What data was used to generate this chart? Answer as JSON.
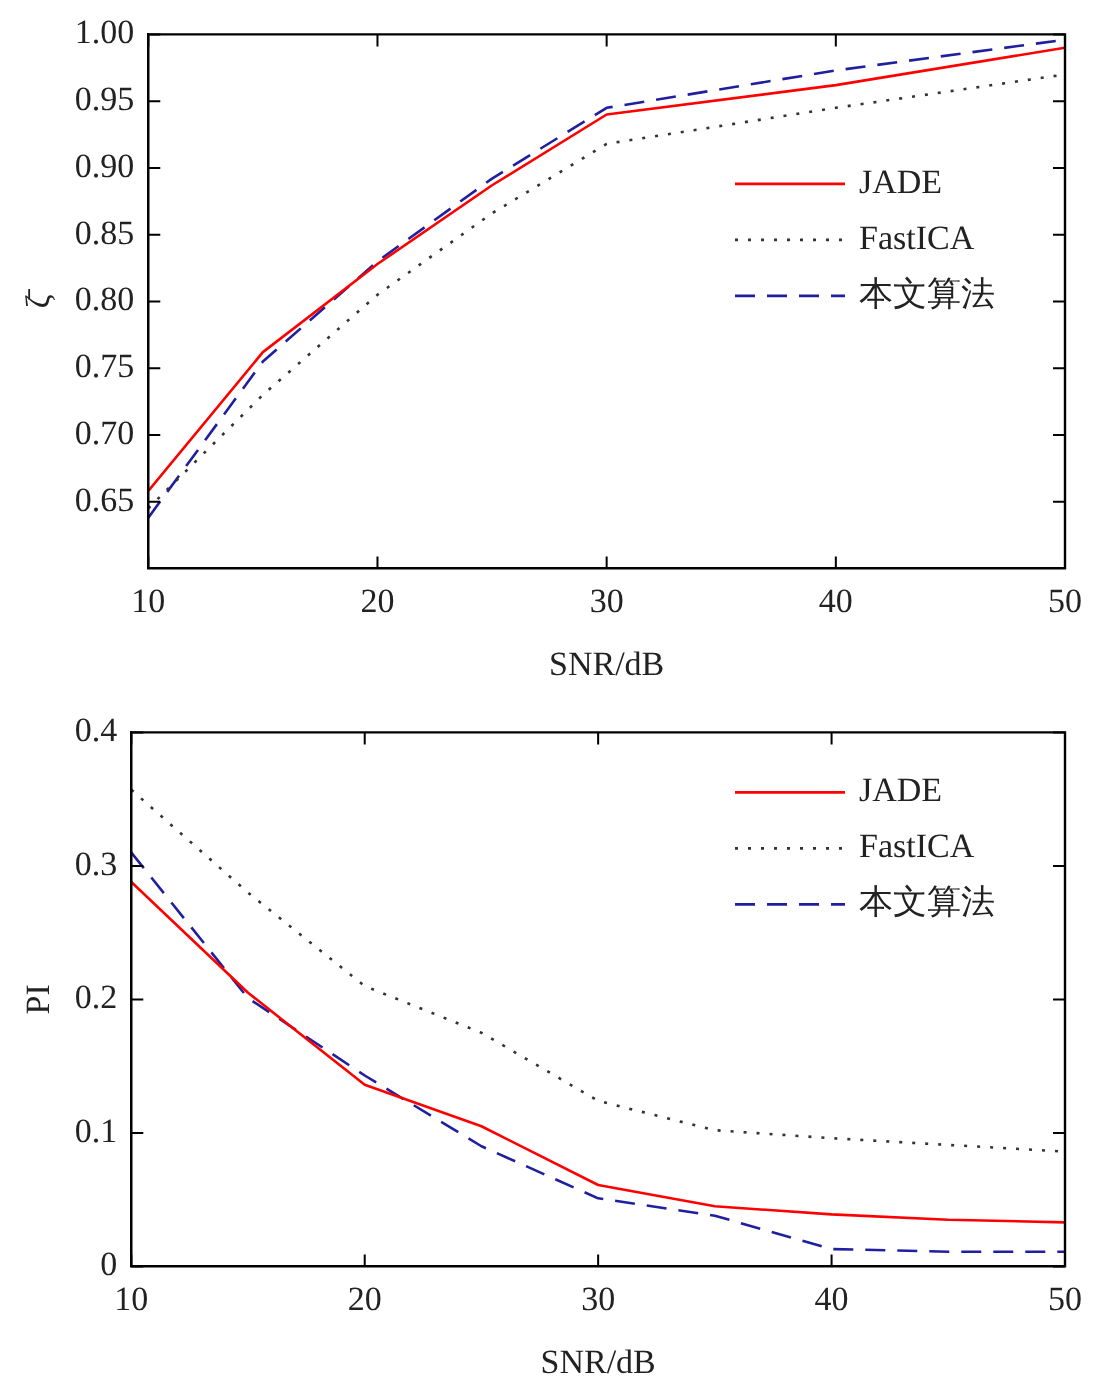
{
  "chart_data": [
    {
      "type": "line",
      "ylabel": "ζ̄",
      "xlabel": "SNR/dB",
      "x": [
        10,
        15,
        20,
        25,
        30,
        40,
        50
      ],
      "xlim": [
        10,
        50
      ],
      "xticks": [
        10,
        20,
        30,
        40,
        50
      ],
      "ylim": [
        0.6,
        1.0
      ],
      "yticks": [
        0.65,
        {
          "value": 0.7,
          "label": "0.70"
        },
        0.75,
        {
          "value": 0.8,
          "label": "0.80"
        },
        0.85,
        {
          "value": 0.9,
          "label": "0.90"
        },
        0.95,
        {
          "value": 1,
          "label": "1.00"
        }
      ],
      "grid": false,
      "legend": "right",
      "marker": "none",
      "series": [
        {
          "name": "JADE",
          "color": "#ff0000",
          "line_style": "solid",
          "values": [
            0.658,
            0.762,
            0.828,
            0.887,
            0.94,
            0.962,
            0.99
          ]
        },
        {
          "name": "FastICA",
          "color": "#333333",
          "line_style": "dotted",
          "values": [
            0.645,
            0.73,
            0.805,
            0.866,
            0.918,
            0.945,
            0.97
          ]
        },
        {
          "name": "本文算法",
          "color": "#1f1f9f",
          "line_style": "dashed",
          "values": [
            0.638,
            0.755,
            0.83,
            0.892,
            0.945,
            0.973,
            0.996
          ]
        }
      ]
    },
    {
      "type": "line",
      "ylabel": "PI",
      "xlabel": "SNR/dB",
      "x": [
        10,
        15,
        20,
        25,
        30,
        35,
        40,
        45,
        50
      ],
      "xlim": [
        10,
        50
      ],
      "xticks": [
        10,
        20,
        30,
        40,
        50
      ],
      "ylim": [
        0,
        0.4
      ],
      "yticks": [
        0,
        0.1,
        0.2,
        0.3,
        0.4
      ],
      "grid": false,
      "legend": "top right",
      "marker": "none",
      "series": [
        {
          "name": "JADE",
          "color": "#ff0000",
          "line_style": "solid",
          "values": [
            0.288,
            0.205,
            0.136,
            0.105,
            0.061,
            0.045,
            0.039,
            0.035,
            0.033
          ]
        },
        {
          "name": "FastICA",
          "color": "#333333",
          "line_style": "dotted",
          "values": [
            0.357,
            0.28,
            0.21,
            0.175,
            0.124,
            0.102,
            0.096,
            0.091,
            0.086
          ]
        },
        {
          "name": "本文算法",
          "color": "#1f1f9f",
          "line_style": "dashed",
          "values": [
            0.31,
            0.201,
            0.143,
            0.09,
            0.051,
            0.038,
            0.013,
            0.011,
            0.011
          ]
        }
      ]
    }
  ]
}
